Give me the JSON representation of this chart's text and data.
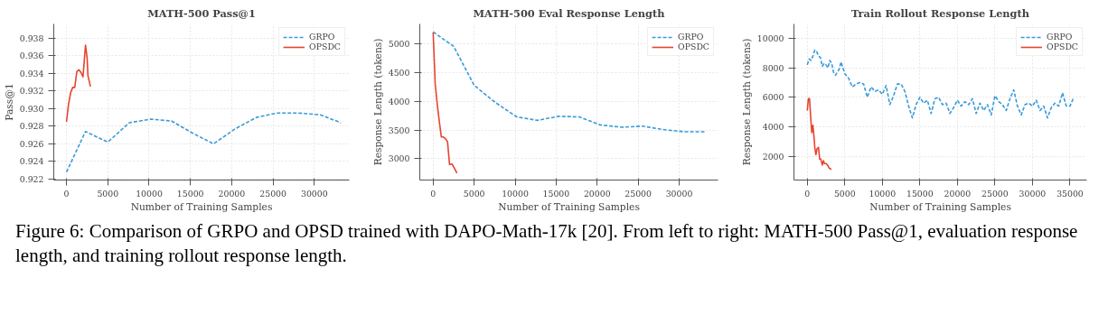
{
  "chart_data": [
    {
      "type": "line",
      "title": "MATH-500 Pass@1",
      "xlabel": "Number of Training Samples",
      "ylabel": "Pass@1",
      "xlim": [
        -1540,
        34230
      ],
      "ylim": [
        0.9219,
        0.9396
      ],
      "xticks": [
        0,
        5000,
        10000,
        15000,
        20000,
        25000,
        30000
      ],
      "yticks": [
        0.922,
        0.924,
        0.926,
        0.928,
        {
          "value": 0.93,
          "label": "0.930"
        },
        0.932,
        0.934,
        0.936,
        0.938
      ],
      "grid": true,
      "legend": "top right",
      "annotations": [
        "Figure 6: Comparison of GRPO and OPSD trained with DAPO-Math-17k [20]. From left to right: MATH-500 Pass@1, evaluation response length, and training rollout response length."
      ],
      "series": [
        {
          "name": "GRPO",
          "color": "#3a9ad9",
          "line_style": "dashed",
          "x": [
            0,
            2300,
            5000,
            7600,
            10200,
            12700,
            15300,
            17800,
            20400,
            23000,
            25500,
            28000,
            30700,
            33200
          ],
          "values": [
            0.9228,
            0.9274,
            0.9262,
            0.9284,
            0.9288,
            0.9286,
            0.9272,
            0.926,
            0.9277,
            0.929,
            0.9295,
            0.9295,
            0.9293,
            0.9284
          ]
        },
        {
          "name": "OPSDC",
          "color": "#e8432f",
          "line_style": "solid",
          "x": [
            0,
            250,
            500,
            750,
            1000,
            1250,
            1500,
            1750,
            2000,
            2300,
            2500,
            2600,
            2900
          ],
          "values": [
            0.9285,
            0.9305,
            0.9318,
            0.9324,
            0.9324,
            0.9342,
            0.9344,
            0.9341,
            0.9336,
            0.9372,
            0.9357,
            0.9337,
            0.9325
          ]
        }
      ]
    },
    {
      "type": "line",
      "title": "MATH-500 Eval Response Length",
      "xlabel": "Number of Training Samples",
      "ylabel": "Response Length (tokens)",
      "xlim": [
        -1630,
        34740
      ],
      "ylim": [
        2630,
        5350
      ],
      "xticks": [
        0,
        5000,
        10000,
        15000,
        20000,
        25000,
        30000
      ],
      "yticks": [
        3000,
        3500,
        4000,
        4500,
        5000
      ],
      "grid": true,
      "legend": "top right",
      "series": [
        {
          "name": "GRPO",
          "color": "#3a9ad9",
          "line_style": "dashed",
          "x": [
            0,
            2500,
            5000,
            7600,
            10200,
            12700,
            15300,
            17800,
            20400,
            23000,
            25500,
            28000,
            30700,
            33200
          ],
          "values": [
            5210,
            4960,
            4280,
            3980,
            3730,
            3670,
            3740,
            3730,
            3590,
            3550,
            3570,
            3510,
            3470,
            3470
          ]
        },
        {
          "name": "OPSDC",
          "color": "#e8432f",
          "line_style": "solid",
          "x": [
            0,
            250,
            500,
            750,
            1000,
            1250,
            1500,
            1750,
            2000,
            2300,
            2500,
            2900
          ],
          "values": [
            5200,
            4300,
            3950,
            3650,
            3380,
            3380,
            3350,
            3300,
            2900,
            2910,
            2860,
            2750
          ]
        }
      ]
    },
    {
      "type": "line",
      "title": "Train Rollout Response Length",
      "xlabel": "Number of Training Samples",
      "ylabel": "Response Length (tokens)",
      "xlim": [
        -1775,
        37230
      ],
      "ylim": [
        380,
        10980
      ],
      "xticks": [
        0,
        5000,
        10000,
        15000,
        20000,
        25000,
        30000,
        35000
      ],
      "yticks": [
        2000,
        4000,
        6000,
        8000,
        10000
      ],
      "grid": true,
      "legend": "top right",
      "series": [
        {
          "name": "GRPO",
          "color": "#3a9ad9",
          "line_style": "dashed",
          "x": [
            0,
            250,
            500,
            750,
            1000,
            1250,
            1500,
            1750,
            2000,
            2250,
            2500,
            2750,
            3000,
            3250,
            3500,
            3750,
            4000,
            4250,
            4500,
            4750,
            5000,
            5500,
            6000,
            6500,
            7000,
            7500,
            8000,
            8500,
            9000,
            9500,
            10000,
            10500,
            11000,
            11500,
            12000,
            12500,
            13000,
            13500,
            14000,
            14500,
            15000,
            15500,
            16000,
            16500,
            17000,
            17500,
            18000,
            18500,
            19000,
            19500,
            20000,
            20500,
            21000,
            21500,
            22000,
            22500,
            23000,
            23500,
            24000,
            24500,
            25000,
            25500,
            26000,
            26500,
            27000,
            27500,
            28000,
            28500,
            29000,
            29500,
            30000,
            30500,
            31000,
            31500,
            32000,
            32500,
            33000,
            33500,
            34000,
            34500,
            35000,
            35500
          ],
          "values": [
            8200,
            8600,
            8500,
            8800,
            9200,
            9100,
            8800,
            8700,
            8100,
            8300,
            8200,
            8000,
            8500,
            8300,
            7700,
            7500,
            7700,
            7900,
            8400,
            8000,
            7600,
            7300,
            6700,
            6900,
            7000,
            6900,
            6000,
            6700,
            6400,
            6500,
            6200,
            6800,
            5500,
            6100,
            6900,
            6900,
            6400,
            5400,
            4600,
            5500,
            6000,
            5600,
            5800,
            4900,
            5900,
            6000,
            5500,
            5600,
            4900,
            5300,
            5800,
            5400,
            5700,
            5500,
            5900,
            4900,
            5600,
            5100,
            5500,
            4800,
            6100,
            5700,
            5500,
            5100,
            5900,
            6500,
            5400,
            4800,
            5500,
            5600,
            5400,
            5800,
            5100,
            5400,
            4600,
            5300,
            5600,
            5400,
            6300,
            5400,
            5400,
            6000
          ]
        },
        {
          "name": "OPSDC",
          "color": "#e8432f",
          "line_style": "solid",
          "x": [
            0,
            150,
            300,
            450,
            600,
            750,
            900,
            1000,
            1150,
            1300,
            1500,
            1650,
            1800,
            2000,
            2150,
            2300,
            2500,
            2700,
            2900,
            3200
          ],
          "values": [
            5100,
            5900,
            5900,
            4700,
            3600,
            4100,
            3300,
            2600,
            2100,
            2500,
            2600,
            1800,
            1800,
            1400,
            1700,
            1500,
            1500,
            1400,
            1200,
            1100
          ]
        }
      ]
    }
  ]
}
